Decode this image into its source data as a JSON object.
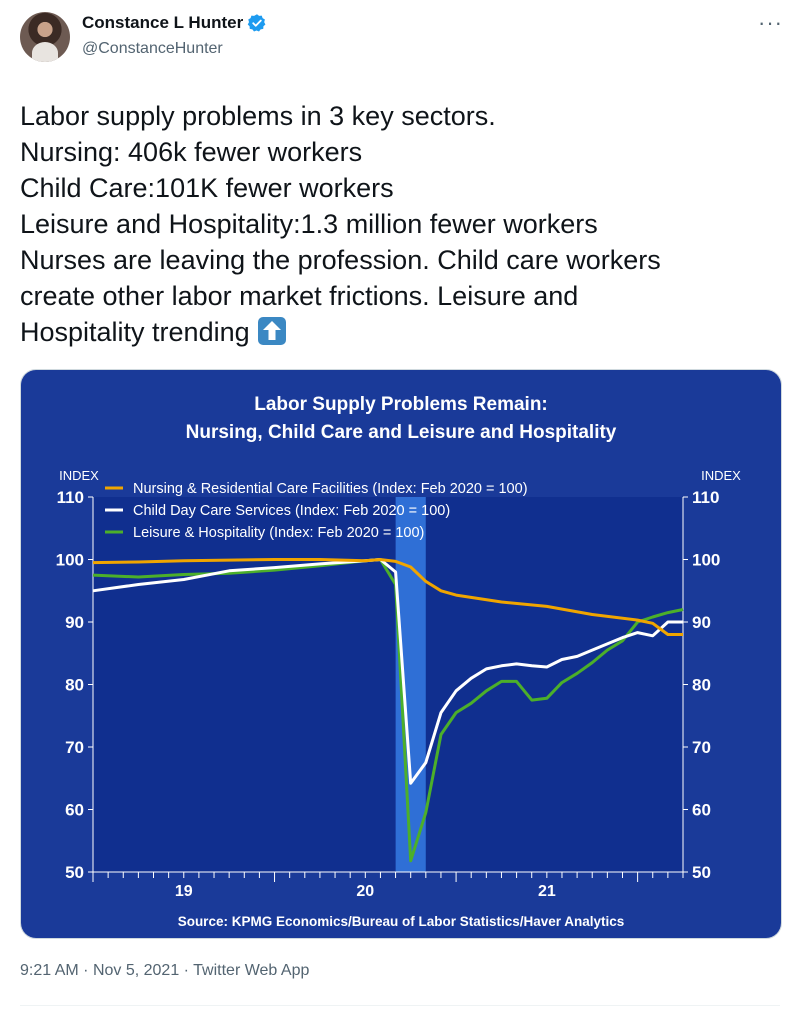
{
  "author": {
    "name": "Constance L Hunter",
    "handle": "@ConstanceHunter"
  },
  "tweet": {
    "lines": [
      "Labor supply problems in 3 key sectors.",
      "Nursing: 406k fewer workers",
      "Child Care:101K fewer workers",
      "Leisure and Hospitality:1.3 million fewer workers",
      "Nurses are leaving the profession. Child care workers",
      "create other labor market frictions. Leisure and",
      "Hospitality trending"
    ],
    "emoji": "up-arrow-icon"
  },
  "meta": {
    "time": "9:21 AM",
    "date": "Nov 5, 2021",
    "client": "Twitter Web App"
  },
  "colors": {
    "chart_background": "#1a3a99",
    "plot_background": "#102f8f",
    "recession_band": "#2f6fd6",
    "nursing": "#f0a500",
    "childcare": "#ffffff",
    "leisure": "#4caf2a",
    "verified": "#1d9bf0"
  },
  "chart_data": {
    "type": "line",
    "title": "Labor Supply Problems Remain:",
    "subtitle": "Nursing, Child Care and Leisure and Hospitality",
    "ylabel_left": "INDEX",
    "ylabel_right": "INDEX",
    "ylim": [
      50,
      110
    ],
    "yticks": [
      50,
      60,
      70,
      80,
      90,
      100,
      110
    ],
    "x_tick_labels": [
      "19",
      "20",
      "21"
    ],
    "xlim": [
      2018.5,
      2021.75
    ],
    "shaded_period": [
      2020.167,
      2020.333
    ],
    "source": "Source:  KPMG Economics/Bureau of Labor Statistics/Haver Analytics",
    "series": [
      {
        "name": "Nursing & Residential Care Facilities (Index: Feb 2020 = 100)",
        "x": [
          2018.5,
          2018.75,
          2019.0,
          2019.25,
          2019.5,
          2019.75,
          2020.0,
          2020.083,
          2020.167,
          2020.25,
          2020.333,
          2020.417,
          2020.5,
          2020.75,
          2021.0,
          2021.25,
          2021.5,
          2021.583,
          2021.667,
          2021.75
        ],
        "values": [
          99.5,
          99.6,
          99.8,
          99.9,
          100.0,
          100.0,
          99.8,
          100.0,
          99.7,
          98.8,
          96.5,
          95.0,
          94.3,
          93.2,
          92.5,
          91.2,
          90.3,
          89.8,
          88.0,
          88.0
        ]
      },
      {
        "name": "Child Day Care Services (Index: Feb 2020 = 100)",
        "x": [
          2018.5,
          2018.75,
          2019.0,
          2019.25,
          2019.5,
          2019.75,
          2020.0,
          2020.083,
          2020.167,
          2020.25,
          2020.333,
          2020.417,
          2020.5,
          2020.583,
          2020.667,
          2020.75,
          2020.833,
          2020.917,
          2021.0,
          2021.083,
          2021.167,
          2021.25,
          2021.333,
          2021.417,
          2021.5,
          2021.583,
          2021.667,
          2021.75
        ],
        "values": [
          95.0,
          96.0,
          96.8,
          98.2,
          98.7,
          99.3,
          99.8,
          100.0,
          98.0,
          64.2,
          67.5,
          75.5,
          79.0,
          81.0,
          82.5,
          83.0,
          83.3,
          83.0,
          82.8,
          84.0,
          84.5,
          85.5,
          86.5,
          87.5,
          88.3,
          87.8,
          90.0,
          90.0
        ]
      },
      {
        "name": "Leisure & Hospitality (Index: Feb 2020 = 100)",
        "x": [
          2018.5,
          2018.75,
          2019.0,
          2019.25,
          2019.5,
          2019.75,
          2020.0,
          2020.083,
          2020.167,
          2020.25,
          2020.333,
          2020.417,
          2020.5,
          2020.583,
          2020.667,
          2020.75,
          2020.833,
          2020.917,
          2021.0,
          2021.083,
          2021.167,
          2021.25,
          2021.333,
          2021.417,
          2021.5,
          2021.583,
          2021.667,
          2021.75
        ],
        "values": [
          97.5,
          97.2,
          97.6,
          97.8,
          98.3,
          99.0,
          99.8,
          100.0,
          96.0,
          51.8,
          59.5,
          72.0,
          75.5,
          77.0,
          79.0,
          80.5,
          80.5,
          77.5,
          77.8,
          80.3,
          81.8,
          83.5,
          85.5,
          87.0,
          90.0,
          90.8,
          91.5,
          92.0
        ]
      }
    ]
  }
}
